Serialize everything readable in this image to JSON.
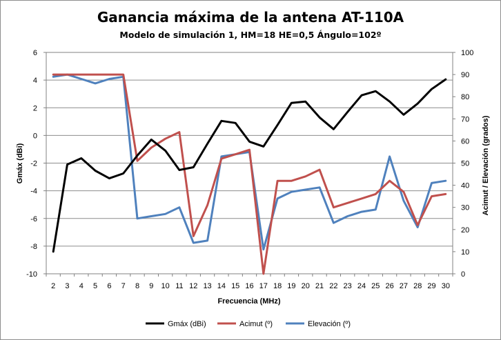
{
  "chart_data": {
    "type": "line",
    "title": "Ganancia máxima de la antena AT-110A",
    "subtitle": "Modelo de simulación 1, HM=18 HE=0,5 Ángulo=102º",
    "xlabel": "Frecuencia (MHz)",
    "ylabel": "Gmáx (dBi)",
    "y2label": "Acimut / Elevación  (grados)",
    "x": [
      2,
      3,
      4,
      5,
      6,
      7,
      8,
      9,
      10,
      11,
      12,
      13,
      14,
      15,
      16,
      17,
      18,
      19,
      20,
      21,
      22,
      23,
      24,
      25,
      26,
      27,
      28,
      29,
      30
    ],
    "ylim": [
      -10,
      6
    ],
    "y2lim": [
      0,
      100
    ],
    "yticks": [
      -10,
      -8,
      -6,
      -4,
      -2,
      0,
      2,
      4,
      6
    ],
    "y2ticks": [
      0,
      10,
      20,
      30,
      40,
      50,
      60,
      70,
      80,
      90,
      100
    ],
    "grid": "horizontal",
    "legend_position": "bottom",
    "series": [
      {
        "name": "Gmáx (dBi)",
        "axis": "left",
        "color": "#000000",
        "values": [
          -8.4,
          -2.1,
          -1.65,
          -2.55,
          -3.1,
          -2.75,
          -1.45,
          -0.3,
          -1.1,
          -2.5,
          -2.3,
          -0.6,
          1.05,
          0.9,
          -0.45,
          -0.8,
          0.75,
          2.35,
          2.45,
          1.3,
          0.45,
          1.7,
          2.9,
          3.2,
          2.45,
          1.5,
          2.3,
          3.35,
          4.05
        ]
      },
      {
        "name": "Acimut (º)",
        "axis": "right",
        "color": "#c0504d",
        "values": [
          90,
          90,
          90,
          90,
          90,
          90,
          51,
          57,
          61,
          64,
          17,
          31,
          52,
          54,
          56,
          0,
          42,
          42,
          44,
          47,
          30,
          32,
          34,
          36,
          42,
          37,
          22,
          35,
          36
        ]
      },
      {
        "name": "Elevación (º)",
        "axis": "right",
        "color": "#4f81bd",
        "values": [
          89,
          90,
          88,
          86,
          88,
          89,
          25,
          26,
          27,
          30,
          14,
          15,
          53,
          54,
          55,
          11,
          34,
          37,
          38,
          39,
          23,
          26,
          28,
          29,
          53,
          33,
          21,
          41,
          42
        ]
      }
    ]
  }
}
